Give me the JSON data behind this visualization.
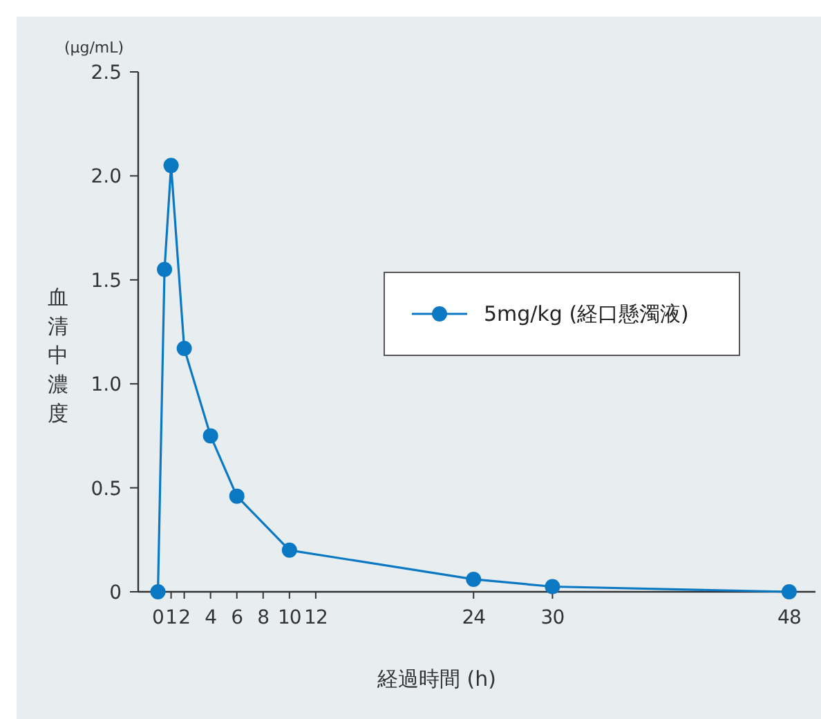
{
  "chart_data": {
    "type": "line",
    "xlabel": "経過時間 (h)",
    "ylabel": "血清中濃度",
    "annotations": [
      "(μg/mL)"
    ],
    "x": [
      0,
      0.5,
      1,
      2,
      4,
      6,
      10,
      24,
      30,
      48
    ],
    "series": [
      {
        "name": "5mg/kg (経口懸濁液)",
        "color": "#0a78c2",
        "values": [
          0,
          1.55,
          2.05,
          1.17,
          0.75,
          0.46,
          0.2,
          0.06,
          0.025,
          0
        ]
      }
    ],
    "xlim": [
      -1.5,
      50
    ],
    "xticks": [
      0,
      1,
      2,
      4,
      6,
      8,
      10,
      12,
      24,
      30,
      48
    ],
    "ylim": [
      0,
      2.5
    ],
    "yticks": [
      0,
      0.5,
      {
        "value": 1,
        "label": "1.0"
      },
      1.5,
      {
        "value": 2,
        "label": "2.0"
      },
      2.5
    ],
    "marker": "circle",
    "line_style": "solid",
    "grid": false,
    "legend": "right"
  }
}
